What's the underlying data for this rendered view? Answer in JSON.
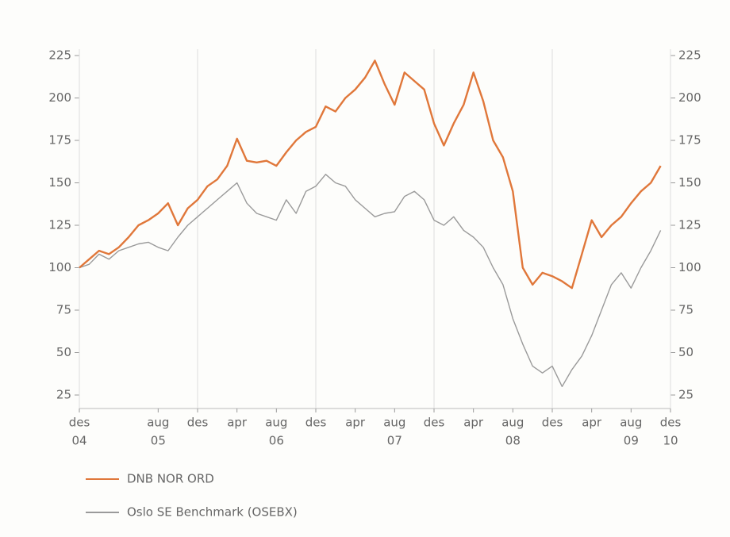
{
  "chart_data": {
    "type": "line",
    "x": [
      0,
      1,
      2,
      3,
      4,
      5,
      6,
      7,
      8,
      9,
      10,
      11,
      12,
      13,
      14,
      15,
      16,
      17,
      18,
      19,
      20,
      21,
      22,
      23,
      24,
      25,
      26,
      27,
      28,
      29,
      30,
      31,
      32,
      33,
      34,
      35,
      36,
      37,
      38,
      39,
      40,
      41,
      42,
      43,
      44,
      45,
      46,
      47,
      48,
      49,
      50,
      51,
      52,
      53,
      54,
      55,
      56,
      57,
      58,
      59
    ],
    "series": [
      {
        "name": "DNB NOR ORD",
        "color": "#e0773a",
        "values": [
          100,
          105,
          110,
          108,
          112,
          118,
          125,
          128,
          132,
          138,
          125,
          135,
          140,
          148,
          152,
          160,
          176,
          163,
          162,
          163,
          160,
          168,
          175,
          180,
          183,
          195,
          192,
          200,
          205,
          212,
          222,
          208,
          196,
          215,
          210,
          205,
          185,
          172,
          185,
          196,
          215,
          198,
          175,
          165,
          145,
          100,
          90,
          97,
          95,
          92,
          88,
          108,
          128,
          118,
          125,
          130,
          138,
          145,
          150,
          160
        ]
      },
      {
        "name": "Oslo SE Benchmark (OSEBX)",
        "color": "#9a9a9a",
        "values": [
          100,
          102,
          108,
          105,
          110,
          112,
          114,
          115,
          112,
          110,
          118,
          125,
          130,
          135,
          140,
          145,
          150,
          138,
          132,
          130,
          128,
          140,
          132,
          145,
          148,
          155,
          150,
          148,
          140,
          135,
          130,
          132,
          133,
          142,
          145,
          140,
          128,
          125,
          130,
          122,
          118,
          112,
          100,
          90,
          70,
          55,
          42,
          38,
          42,
          30,
          40,
          48,
          60,
          75,
          90,
          97,
          88,
          100,
          110,
          122
        ]
      }
    ],
    "xlim": [
      0,
      60
    ],
    "xticks": [
      {
        "value": 0,
        "label": "des"
      },
      {
        "value": 8,
        "label": "aug"
      },
      {
        "value": 12,
        "label": "des"
      },
      {
        "value": 16,
        "label": "apr"
      },
      {
        "value": 20,
        "label": "aug"
      },
      {
        "value": 24,
        "label": "des"
      },
      {
        "value": 28,
        "label": "apr"
      },
      {
        "value": 32,
        "label": "aug"
      },
      {
        "value": 36,
        "label": "des"
      },
      {
        "value": 40,
        "label": "apr"
      },
      {
        "value": 44,
        "label": "aug"
      },
      {
        "value": 48,
        "label": "des"
      },
      {
        "value": 52,
        "label": "apr"
      },
      {
        "value": 56,
        "label": "aug"
      },
      {
        "value": 60,
        "label": "des"
      }
    ],
    "xticks2": [
      {
        "value": 0,
        "label": "04"
      },
      {
        "value": 8,
        "label": "05"
      },
      {
        "value": 20,
        "label": "06"
      },
      {
        "value": 32,
        "label": "07"
      },
      {
        "value": 44,
        "label": "08"
      },
      {
        "value": 56,
        "label": "09"
      },
      {
        "value": 60,
        "label": "10"
      }
    ],
    "ylim": [
      25,
      225
    ],
    "yticks": [
      25,
      50,
      75,
      100,
      125,
      150,
      175,
      200,
      225
    ],
    "y2lim": [
      25,
      225
    ],
    "y2ticks": [
      25,
      50,
      75,
      100,
      125,
      150,
      175,
      200,
      225
    ]
  }
}
